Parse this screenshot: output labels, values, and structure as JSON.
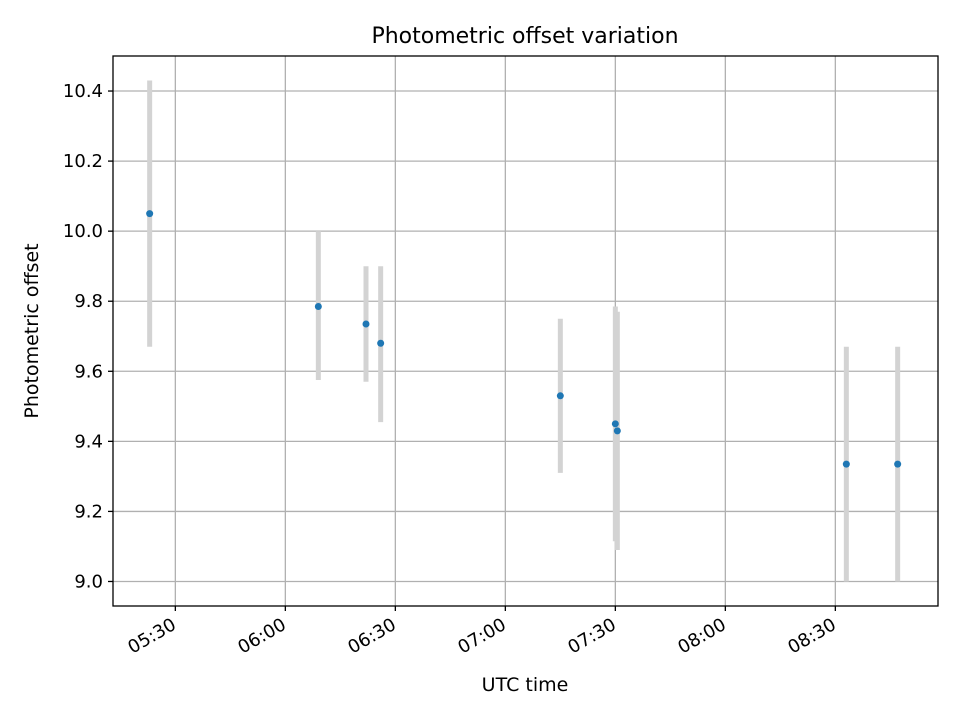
{
  "chart_data": {
    "type": "scatter",
    "title": "Photometric offset variation",
    "xlabel": "UTC time",
    "ylabel": "Photometric offset",
    "grid": true,
    "legend": "none",
    "x_ticks": [
      "05:30",
      "06:00",
      "06:30",
      "07:00",
      "07:30",
      "08:00",
      "08:30"
    ],
    "y_ticks": [
      "9.0",
      "9.2",
      "9.4",
      "9.6",
      "9.8",
      "10.0",
      "10.2",
      "10.4"
    ],
    "xlim": [
      "05:13",
      "08:58"
    ],
    "ylim": [
      8.93,
      10.5
    ],
    "points": [
      {
        "x": "05:23",
        "y": 10.05,
        "yerr_low": 9.67,
        "yerr_high": 10.43
      },
      {
        "x": "06:09",
        "y": 9.785,
        "yerr_low": 9.575,
        "yerr_high": 10.0
      },
      {
        "x": "06:22",
        "y": 9.735,
        "yerr_low": 9.57,
        "yerr_high": 9.9
      },
      {
        "x": "06:26",
        "y": 9.68,
        "yerr_low": 9.455,
        "yerr_high": 9.9
      },
      {
        "x": "07:15",
        "y": 9.53,
        "yerr_low": 9.31,
        "yerr_high": 9.75
      },
      {
        "x": "07:30",
        "y": 9.45,
        "yerr_low": 9.115,
        "yerr_high": 9.785
      },
      {
        "x": "07:30",
        "y": 9.43,
        "yerr_low": 9.09,
        "yerr_high": 9.77
      },
      {
        "x": "08:33",
        "y": 9.335,
        "yerr_low": 9.0,
        "yerr_high": 9.67
      },
      {
        "x": "08:47",
        "y": 9.335,
        "yerr_low": 9.0,
        "yerr_high": 9.67
      }
    ],
    "colors": {
      "point": "#1f77b4",
      "errorbar": "#d3d3d3",
      "grid": "#b0b0b0",
      "axes": "#000000"
    }
  }
}
